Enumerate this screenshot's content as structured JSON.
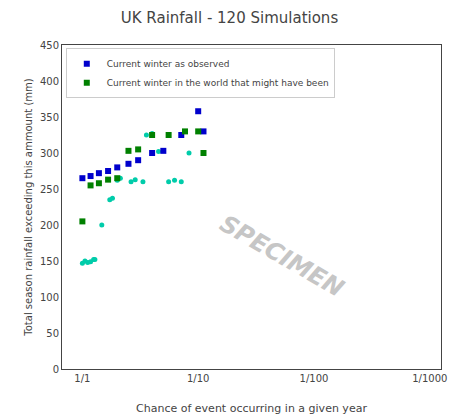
{
  "chart_data": {
    "type": "scatter",
    "title": "UK Rainfall - 120 Simulations",
    "xlabel": "Chance of event occurring in a given year",
    "ylabel": "Total season rainfall exceeding this ammount (mm)",
    "log": "x",
    "xlim": [
      1.5,
      0.0008
    ],
    "ylim": [
      0,
      450
    ],
    "xticks": [
      {
        "value": 1.0,
        "label": "1/1"
      },
      {
        "value": 0.1,
        "label": "1/10"
      },
      {
        "value": 0.01,
        "label": "1/100"
      },
      {
        "value": 0.001,
        "label": "1/1000"
      }
    ],
    "yticks": [
      0,
      50,
      100,
      150,
      200,
      250,
      300,
      350,
      400,
      450
    ],
    "grid": false,
    "legend": "upper left",
    "series": [
      {
        "color": "#00ccaa",
        "marker": "dot",
        "x": [
          0.95,
          0.8,
          0.78,
          0.68,
          0.58,
          0.55,
          0.5,
          0.47,
          0.38,
          0.35,
          0.3,
          0.28,
          0.25,
          0.22,
          0.18,
          0.16,
          0.14,
          0.12,
          1.0,
          0.9,
          0.85
        ],
        "values": [
          150,
          152,
          152,
          200,
          235,
          237,
          262,
          265,
          260,
          263,
          260,
          325,
          327,
          302,
          260,
          262,
          260,
          300,
          147,
          148,
          149
        ]
      },
      {
        "name": "Current winter as observed",
        "color": "#0000cc",
        "marker": "square",
        "x": [
          1.0,
          0.85,
          0.72,
          0.6,
          0.5,
          0.4,
          0.33,
          0.25,
          0.2,
          0.14,
          0.1,
          0.09
        ],
        "values": [
          265,
          268,
          272,
          275,
          280,
          285,
          290,
          300,
          303,
          325,
          358,
          330
        ]
      },
      {
        "name": "Current winter in the world that might have been",
        "color": "#008000",
        "marker": "square",
        "x": [
          1.0,
          0.85,
          0.72,
          0.6,
          0.5,
          0.4,
          0.33,
          0.25,
          0.18,
          0.13,
          0.1,
          0.09
        ],
        "values": [
          205,
          255,
          258,
          263,
          265,
          303,
          305,
          325,
          325,
          330,
          330,
          300
        ]
      }
    ],
    "annotations": [
      {
        "text": "SPECIMEN",
        "color": "#c0c0c0"
      }
    ]
  }
}
